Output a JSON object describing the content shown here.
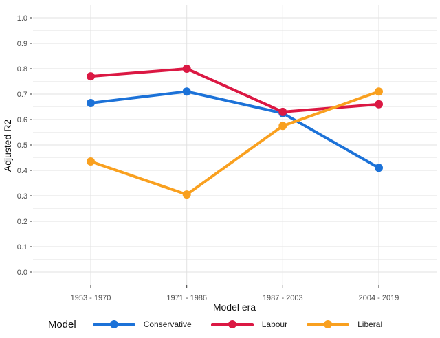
{
  "chart_data": {
    "type": "line",
    "title": "",
    "categories": [
      "1953 - 1970",
      "1971 - 1986",
      "1987 - 2003",
      "2004 - 2019"
    ],
    "series": [
      {
        "name": "Conservative",
        "color": "#1C72D8",
        "values": [
          0.665,
          0.71,
          0.625,
          0.41
        ]
      },
      {
        "name": "Labour",
        "color": "#DB1843",
        "values": [
          0.77,
          0.8,
          0.63,
          0.66
        ]
      },
      {
        "name": "Liberal",
        "color": "#F9A01F",
        "values": [
          0.435,
          0.305,
          0.575,
          0.71
        ]
      }
    ],
    "xlabel": "Model era",
    "ylabel": "Adjusted R2",
    "ylim": [
      0.0,
      1.0
    ],
    "ytick_step": 0.1,
    "yticks": [
      "1.0",
      "0.9",
      "0.8",
      "0.7",
      "0.6",
      "0.5",
      "0.4",
      "0.3",
      "0.2",
      "0.1",
      "0.0"
    ],
    "grid": {
      "horizontal": "major+minor",
      "vertical": "major-at-categories",
      "major_color": "#E2E2E2",
      "minor_color": "#F0F0F0"
    },
    "legend": {
      "title": "Model",
      "position": "bottom"
    }
  },
  "colors": {
    "background": "#FFFFFF",
    "tick_text": "#4D4D4D",
    "axis_title_text": "#111111",
    "tick_mark": "#333333"
  }
}
